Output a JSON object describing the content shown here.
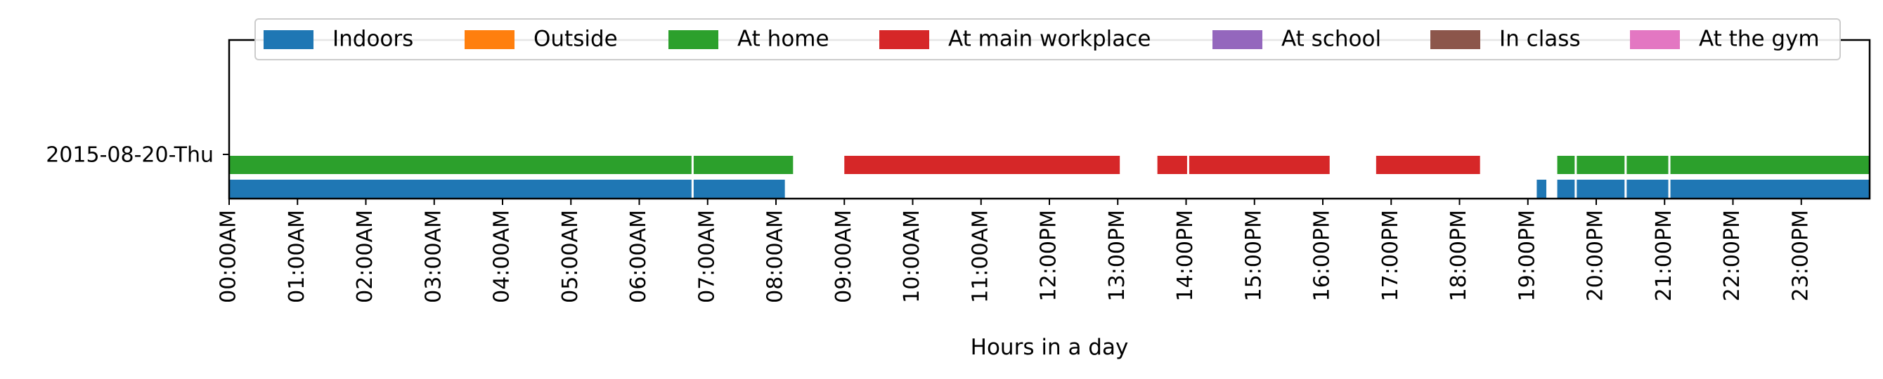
{
  "chart_data": {
    "type": "timeline",
    "xlabel": "Hours in a day",
    "xlim": [
      0,
      24
    ],
    "x_ticks": [
      "00:00AM",
      "01:00AM",
      "02:00AM",
      "03:00AM",
      "04:00AM",
      "05:00AM",
      "06:00AM",
      "07:00AM",
      "08:00AM",
      "09:00AM",
      "10:00AM",
      "11:00AM",
      "12:00PM",
      "13:00PM",
      "14:00PM",
      "15:00PM",
      "16:00PM",
      "17:00PM",
      "18:00PM",
      "19:00PM",
      "20:00PM",
      "21:00PM",
      "22:00PM",
      "23:00PM"
    ],
    "row_label": "2015-08-20-Thu",
    "legend_position": "top",
    "legend": [
      {
        "label": "Indoors",
        "color": "#1f77b4"
      },
      {
        "label": "Outside",
        "color": "#ff7f0e"
      },
      {
        "label": "At home",
        "color": "#2ca02c"
      },
      {
        "label": "At main workplace",
        "color": "#d62728"
      },
      {
        "label": "At school",
        "color": "#9467bd"
      },
      {
        "label": "In class",
        "color": "#8c564b"
      },
      {
        "label": "At the gym",
        "color": "#e377c2"
      }
    ],
    "tracks": [
      {
        "label": "Indoors",
        "color": "#1f77b4",
        "lane": 0,
        "segments": [
          [
            0.0,
            8.13
          ],
          [
            19.13,
            19.27
          ],
          [
            19.43,
            24.0
          ]
        ],
        "gaps": [
          6.78,
          19.7,
          20.43,
          21.07
        ]
      },
      {
        "label": "At home",
        "color": "#2ca02c",
        "lane": 1,
        "segments": [
          [
            0.0,
            8.25
          ],
          [
            19.43,
            24.0
          ]
        ],
        "gaps": [
          6.78,
          19.7,
          20.43,
          21.07
        ]
      },
      {
        "label": "At main workplace",
        "color": "#d62728",
        "lane": 1,
        "segments": [
          [
            9.0,
            13.03
          ],
          [
            13.58,
            16.1
          ],
          [
            16.78,
            18.3
          ]
        ],
        "gaps": [
          14.03
        ]
      }
    ]
  }
}
